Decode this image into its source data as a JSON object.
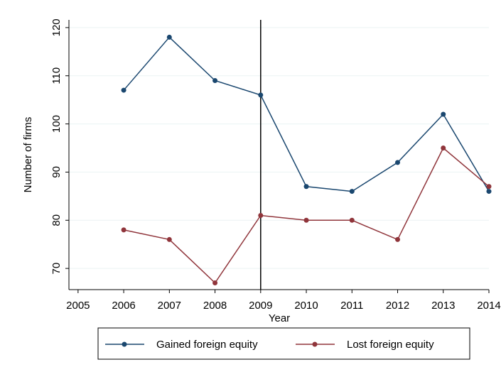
{
  "chart_data": {
    "type": "line",
    "x": [
      2006,
      2007,
      2008,
      2009,
      2010,
      2011,
      2012,
      2013,
      2014
    ],
    "series": [
      {
        "name": "Gained foreign equity",
        "color": "#1a476f",
        "values": [
          107,
          118,
          109,
          106,
          87,
          86,
          92,
          102,
          86
        ]
      },
      {
        "name": "Lost foreign equity",
        "color": "#90353b",
        "values": [
          78,
          76,
          67,
          81,
          80,
          80,
          76,
          95,
          87
        ]
      }
    ],
    "xlabel": "Year",
    "ylabel": "Number of firms",
    "xlim": [
      2004.8,
      2014
    ],
    "ylim": [
      65.6,
      121.6
    ],
    "xticks": [
      2005,
      2006,
      2007,
      2008,
      2009,
      2010,
      2011,
      2012,
      2013,
      2014
    ],
    "yticks": [
      70,
      80,
      90,
      100,
      110,
      120
    ],
    "vline": 2009,
    "grid": true,
    "legend": "bottom"
  }
}
